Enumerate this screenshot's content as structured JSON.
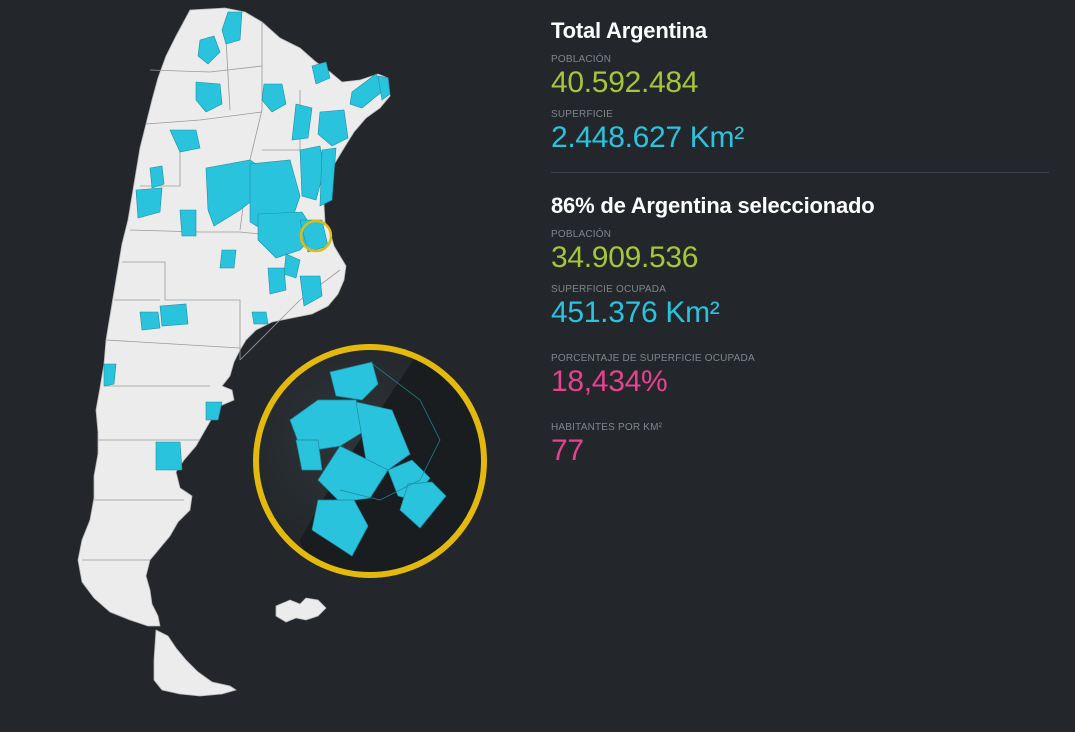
{
  "total": {
    "title": "Total Argentina",
    "poblacion_label": "POBLACIÓN",
    "poblacion_value": "40.592.484",
    "superficie_label": "SUPERFICIE",
    "superficie_value": "2.448.627 Km²"
  },
  "seleccion": {
    "title": "86% de Argentina seleccionado",
    "poblacion_label": "POBLACIÓN",
    "poblacion_value": "34.909.536",
    "superficie_label": "SUPERFICIE OCUPADA",
    "superficie_value": "451.376 Km²",
    "porcentaje_label": "PORCENTAJE DE SUPERFICIE OCUPADA",
    "porcentaje_value": "18,434%",
    "habitantes_label": "HABITANTES POR KM²",
    "habitantes_value": "77"
  },
  "colors": {
    "background": "#23272b",
    "land": "#ececec",
    "selected": "#2ac3dd",
    "accent_green": "#a4c639",
    "accent_cyan": "#2ac3dd",
    "accent_pink": "#e6428f",
    "zoom_ring": "#e3b90e"
  },
  "map": {
    "country": "Argentina",
    "zoom_focus": "Gran Buenos Aires"
  }
}
